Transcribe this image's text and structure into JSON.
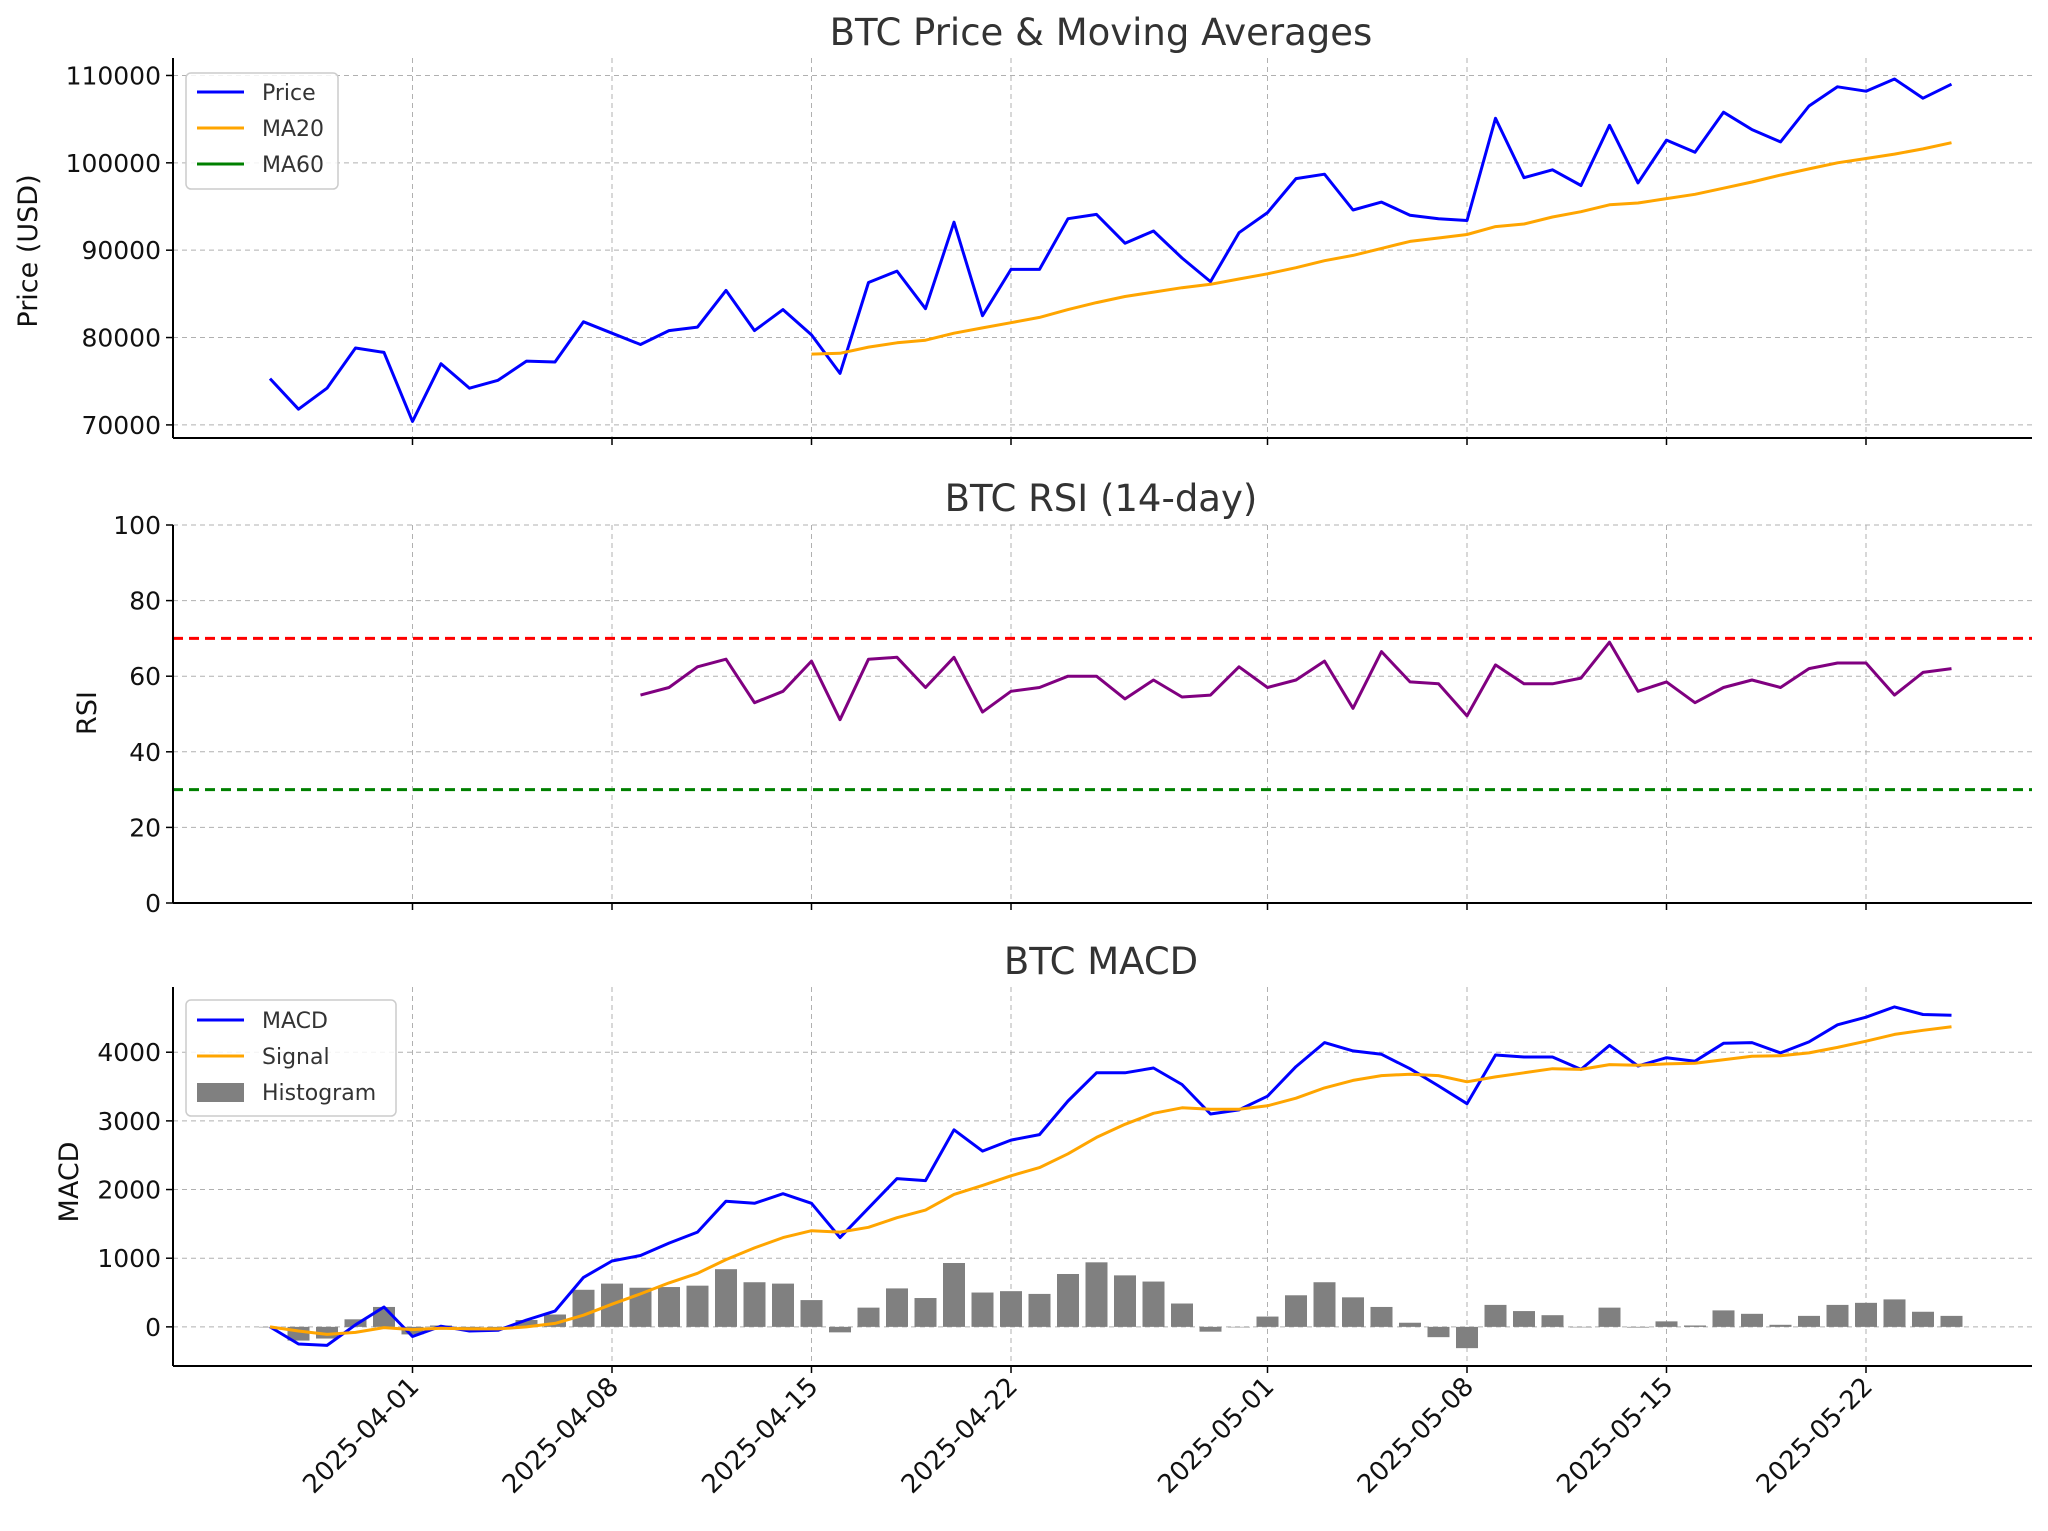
{
  "chart_data": [
    {
      "type": "line",
      "title": "BTC Price & Moving Averages",
      "xlabel": "",
      "ylabel": "Price (USD)",
      "x_start": "2025-03-27",
      "yticks": [
        "70000",
        "80000",
        "90000",
        "100000",
        "110000"
      ],
      "ylim": [
        68500,
        112000
      ],
      "legend": "top-left",
      "grid": true,
      "series": [
        {
          "name": "Price",
          "color": "#0000ff",
          "values": [
            75300,
            71800,
            74200,
            78800,
            78300,
            70400,
            77000,
            74200,
            75100,
            77300,
            77200,
            81800,
            80500,
            79200,
            80800,
            81200,
            85400,
            80800,
            83200,
            80300,
            75900,
            86300,
            87600,
            83300,
            93200,
            82500,
            87800,
            87800,
            93600,
            94100,
            90800,
            92200,
            89100,
            86400,
            92000,
            94300,
            98200,
            98700,
            94600,
            95500,
            94000,
            93600,
            93400,
            105100,
            98300,
            99200,
            97400,
            104300,
            97700,
            102600,
            101200,
            105800,
            103800,
            102400,
            106500,
            108700,
            108200,
            109600,
            107400,
            109000
          ]
        },
        {
          "name": "MA20",
          "color": "#ffa500",
          "values": [
            null,
            null,
            null,
            null,
            null,
            null,
            null,
            null,
            null,
            null,
            null,
            null,
            null,
            null,
            null,
            null,
            null,
            null,
            null,
            78100,
            78200,
            78900,
            79400,
            79700,
            80500,
            81100,
            81700,
            82300,
            83200,
            84000,
            84700,
            85200,
            85700,
            86100,
            86700,
            87300,
            88000,
            88800,
            89400,
            90200,
            91000,
            91400,
            91800,
            92700,
            93000,
            93800,
            94400,
            95200,
            95400,
            95900,
            96400,
            97100,
            97800,
            98600,
            99300,
            100000,
            100500,
            101000,
            101600,
            102300
          ]
        },
        {
          "name": "MA60",
          "color": "#008000",
          "values": []
        }
      ]
    },
    {
      "type": "line",
      "title": "BTC RSI (14-day)",
      "xlabel": "",
      "ylabel": "RSI",
      "yticks": [
        "0",
        "20",
        "40",
        "60",
        "80",
        "100"
      ],
      "ylim": [
        0,
        100
      ],
      "grid": true,
      "reference_lines": [
        {
          "value": 70,
          "color": "#ff0000"
        },
        {
          "value": 30,
          "color": "#008000"
        }
      ],
      "series": [
        {
          "color": "#800080",
          "values": [
            null,
            null,
            null,
            null,
            null,
            null,
            null,
            null,
            null,
            null,
            null,
            null,
            null,
            55,
            57,
            62.5,
            64.5,
            53,
            56,
            64,
            48.5,
            64.5,
            65,
            57,
            65,
            50.5,
            56,
            57,
            60,
            60,
            54,
            59,
            54.5,
            55,
            62.5,
            57,
            59,
            64,
            51.5,
            66.5,
            58.5,
            58,
            49.5,
            63,
            58,
            58,
            59.5,
            69,
            56,
            58.5,
            53,
            57,
            59,
            57,
            62,
            63.5,
            63.5,
            55,
            61,
            62
          ]
        }
      ]
    },
    {
      "type": "line",
      "title": "BTC MACD",
      "xlabel": "",
      "ylabel": "MACD",
      "yticks": [
        "0",
        "1000",
        "2000",
        "3000",
        "4000"
      ],
      "ylim": [
        -570,
        4950
      ],
      "legend": "top-left",
      "grid": true,
      "x_ticks": [
        "2025-04-01",
        "2025-04-08",
        "2025-04-15",
        "2025-04-22",
        "2025-05-01",
        "2025-05-08",
        "2025-05-15",
        "2025-05-22"
      ],
      "series": [
        {
          "name": "MACD",
          "color": "#0000ff",
          "values": [
            0,
            -250,
            -270,
            30,
            290,
            -140,
            10,
            -60,
            -50,
            100,
            230,
            720,
            960,
            1040,
            1220,
            1380,
            1830,
            1800,
            1940,
            1800,
            1300,
            1730,
            2160,
            2130,
            2870,
            2560,
            2720,
            2800,
            3290,
            3700,
            3700,
            3770,
            3530,
            3100,
            3160,
            3360,
            3790,
            4140,
            4020,
            3970,
            3760,
            3510,
            3250,
            3960,
            3930,
            3930,
            3750,
            4100,
            3800,
            3920,
            3870,
            4130,
            4140,
            3990,
            4150,
            4400,
            4510,
            4660,
            4550,
            4540
          ]
        },
        {
          "name": "Signal",
          "color": "#ffa500",
          "values": [
            0,
            -60,
            -110,
            -80,
            -10,
            -40,
            -20,
            -30,
            -30,
            0,
            50,
            170,
            330,
            480,
            640,
            780,
            980,
            1150,
            1300,
            1400,
            1380,
            1450,
            1590,
            1700,
            1930,
            2060,
            2200,
            2320,
            2520,
            2760,
            2950,
            3110,
            3190,
            3170,
            3170,
            3220,
            3330,
            3480,
            3590,
            3660,
            3680,
            3660,
            3570,
            3640,
            3700,
            3760,
            3750,
            3820,
            3810,
            3830,
            3840,
            3890,
            3940,
            3950,
            3990,
            4070,
            4160,
            4260,
            4320,
            4370
          ]
        },
        {
          "name": "Histogram",
          "color": "#808080",
          "values": [
            0,
            -200,
            -170,
            110,
            290,
            -110,
            20,
            -40,
            -30,
            100,
            180,
            540,
            630,
            570,
            580,
            600,
            840,
            650,
            630,
            390,
            -80,
            280,
            560,
            420,
            930,
            500,
            520,
            480,
            770,
            940,
            750,
            660,
            340,
            -70,
            0,
            150,
            460,
            650,
            430,
            290,
            60,
            -150,
            -310,
            320,
            230,
            170,
            0,
            280,
            -10,
            80,
            20,
            240,
            190,
            30,
            160,
            320,
            350,
            400,
            220,
            160
          ]
        }
      ]
    }
  ]
}
